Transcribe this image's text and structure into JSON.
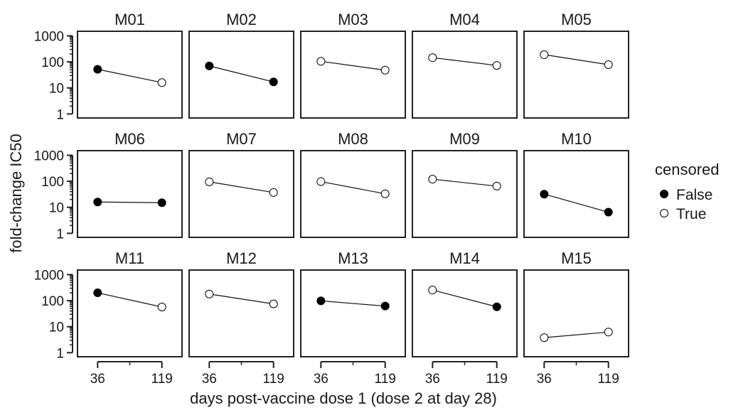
{
  "chart_data": {
    "type": "scatter",
    "subtype": "faceted line plot",
    "xlabel": "days post-vaccine dose 1 (dose 2 at day 28)",
    "ylabel": "fold-change IC50",
    "y_scale": "log",
    "ylim": [
      0.7,
      1500
    ],
    "y_ticks": [
      1,
      10,
      100,
      1000
    ],
    "y_tick_labels": [
      "1",
      "10",
      "100",
      "1000"
    ],
    "x_ticks": [
      36,
      119
    ],
    "x_tick_labels": [
      "36",
      "119"
    ],
    "xlim": [
      10,
      145
    ],
    "grid": false,
    "legend": {
      "title": "censored",
      "position": "right",
      "entries": [
        {
          "label": "False",
          "filled": true
        },
        {
          "label": "True",
          "filled": false
        }
      ]
    },
    "facets": [
      {
        "title": "M01",
        "points": [
          {
            "x": 36,
            "y": 52,
            "censored": false
          },
          {
            "x": 119,
            "y": 16,
            "censored": true
          }
        ]
      },
      {
        "title": "M02",
        "points": [
          {
            "x": 36,
            "y": 70,
            "censored": false
          },
          {
            "x": 119,
            "y": 17,
            "censored": false
          }
        ]
      },
      {
        "title": "M03",
        "points": [
          {
            "x": 36,
            "y": 105,
            "censored": true
          },
          {
            "x": 119,
            "y": 48,
            "censored": true
          }
        ]
      },
      {
        "title": "M04",
        "points": [
          {
            "x": 36,
            "y": 145,
            "censored": true
          },
          {
            "x": 119,
            "y": 73,
            "censored": true
          }
        ]
      },
      {
        "title": "M05",
        "points": [
          {
            "x": 36,
            "y": 190,
            "censored": true
          },
          {
            "x": 119,
            "y": 78,
            "censored": true
          }
        ]
      },
      {
        "title": "M06",
        "points": [
          {
            "x": 36,
            "y": 16,
            "censored": false
          },
          {
            "x": 119,
            "y": 15,
            "censored": false
          }
        ]
      },
      {
        "title": "M07",
        "points": [
          {
            "x": 36,
            "y": 95,
            "censored": true
          },
          {
            "x": 119,
            "y": 37,
            "censored": true
          }
        ]
      },
      {
        "title": "M08",
        "points": [
          {
            "x": 36,
            "y": 97,
            "censored": true
          },
          {
            "x": 119,
            "y": 33,
            "censored": true
          }
        ]
      },
      {
        "title": "M09",
        "points": [
          {
            "x": 36,
            "y": 120,
            "censored": true
          },
          {
            "x": 119,
            "y": 65,
            "censored": true
          }
        ]
      },
      {
        "title": "M10",
        "points": [
          {
            "x": 36,
            "y": 32,
            "censored": false
          },
          {
            "x": 119,
            "y": 6.5,
            "censored": false
          }
        ]
      },
      {
        "title": "M11",
        "points": [
          {
            "x": 36,
            "y": 200,
            "censored": false
          },
          {
            "x": 119,
            "y": 57,
            "censored": true
          }
        ]
      },
      {
        "title": "M12",
        "points": [
          {
            "x": 36,
            "y": 180,
            "censored": true
          },
          {
            "x": 119,
            "y": 75,
            "censored": true
          }
        ]
      },
      {
        "title": "M13",
        "points": [
          {
            "x": 36,
            "y": 98,
            "censored": false
          },
          {
            "x": 119,
            "y": 62,
            "censored": false
          }
        ]
      },
      {
        "title": "M14",
        "points": [
          {
            "x": 36,
            "y": 255,
            "censored": true
          },
          {
            "x": 119,
            "y": 58,
            "censored": false
          }
        ]
      },
      {
        "title": "M15",
        "points": [
          {
            "x": 36,
            "y": 3.8,
            "censored": true
          },
          {
            "x": 119,
            "y": 6.2,
            "censored": true
          }
        ]
      }
    ]
  }
}
